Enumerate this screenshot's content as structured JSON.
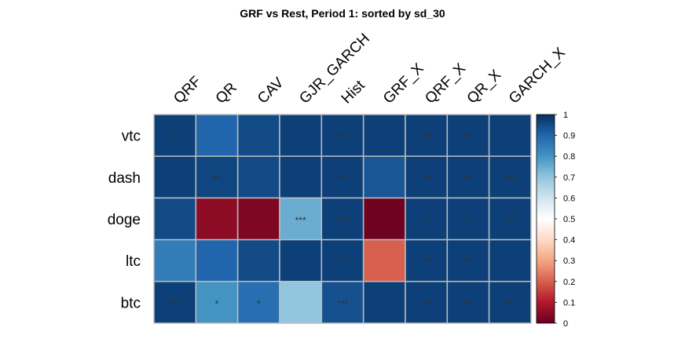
{
  "chart_data": {
    "type": "heatmap",
    "title": "GRF vs Rest,  Period 1: sorted by sd_30",
    "columns": [
      "QRF",
      "QR",
      "CAV",
      "GJR_GARCH",
      "Hist",
      "GRF_X",
      "QRF_X",
      "QR_X",
      "GARCH_X"
    ],
    "rows": [
      "vtc",
      "dash",
      "doge",
      "ltc",
      "btc"
    ],
    "values": [
      [
        0.97,
        0.9,
        0.95,
        0.97,
        0.97,
        0.97,
        0.97,
        0.97,
        0.97
      ],
      [
        0.97,
        0.96,
        0.95,
        0.97,
        0.97,
        0.93,
        0.97,
        0.97,
        0.97
      ],
      [
        0.95,
        0.05,
        0.03,
        0.75,
        0.97,
        0.01,
        0.97,
        0.97,
        0.97
      ],
      [
        0.85,
        0.9,
        0.95,
        0.97,
        0.97,
        0.2,
        0.97,
        0.97,
        0.97
      ],
      [
        0.97,
        0.8,
        0.88,
        0.7,
        0.94,
        0.97,
        0.97,
        0.97,
        0.97
      ]
    ],
    "stars": [
      [
        "**",
        "",
        "",
        "",
        "***",
        "",
        "***",
        "***",
        ""
      ],
      [
        "",
        "**",
        "",
        "",
        "***",
        "",
        "***",
        "***",
        "***"
      ],
      [
        "",
        "",
        "",
        "***",
        "***",
        "",
        "**",
        "**",
        "***"
      ],
      [
        "",
        "",
        "",
        "",
        "***",
        "",
        "***",
        "***",
        ""
      ],
      [
        "***",
        "*",
        "*",
        "",
        "***",
        "",
        "***",
        "***",
        "***"
      ]
    ],
    "colorbar": {
      "ticks": [
        "0",
        "0.1",
        "0.2",
        "0.3",
        "0.4",
        "0.5",
        "0.6",
        "0.7",
        "0.8",
        "0.9",
        "1"
      ],
      "range": [
        0,
        1
      ],
      "colors": [
        "#67001f",
        "#b2182b",
        "#d6604d",
        "#f4a582",
        "#fddbc7",
        "#ffffff",
        "#d1e5f0",
        "#92c5de",
        "#4393c3",
        "#2166ac",
        "#053061"
      ]
    }
  }
}
